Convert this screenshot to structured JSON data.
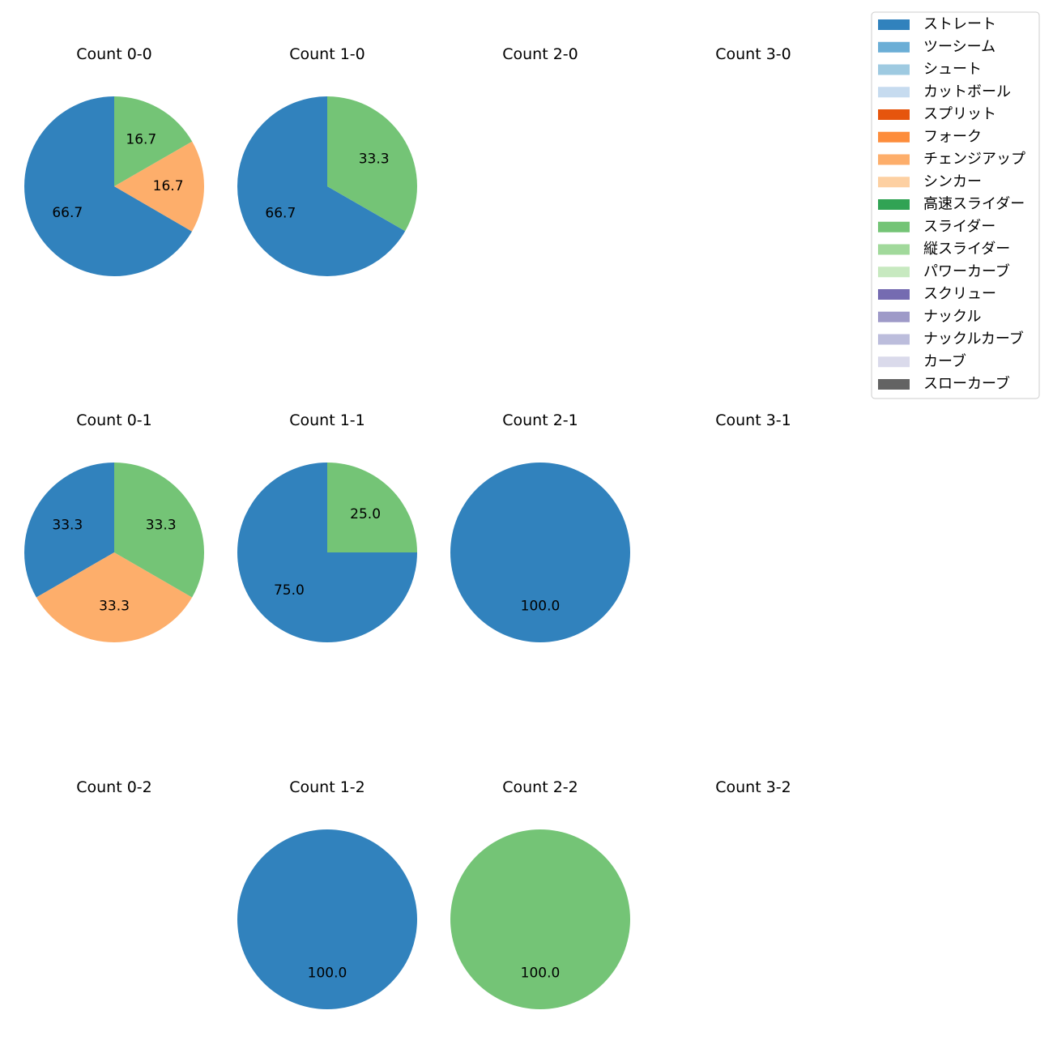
{
  "chart_data": {
    "type": "pie",
    "legend": {
      "placement": "top-right",
      "entries": [
        {
          "name": "ストレート",
          "color": "#3182bd"
        },
        {
          "name": "ツーシーム",
          "color": "#6baed6"
        },
        {
          "name": "シュート",
          "color": "#9ecae1"
        },
        {
          "name": "カットボール",
          "color": "#c6dbef"
        },
        {
          "name": "スプリット",
          "color": "#e6550d"
        },
        {
          "name": "フォーク",
          "color": "#fd8d3c"
        },
        {
          "name": "チェンジアップ",
          "color": "#fdae6b"
        },
        {
          "name": "シンカー",
          "color": "#fdd0a2"
        },
        {
          "name": "高速スライダー",
          "color": "#31a354"
        },
        {
          "name": "スライダー",
          "color": "#74c476"
        },
        {
          "name": "縦スライダー",
          "color": "#a1d99b"
        },
        {
          "name": "パワーカーブ",
          "color": "#c7e9c0"
        },
        {
          "name": "スクリュー",
          "color": "#756bb1"
        },
        {
          "name": "ナックル",
          "color": "#9e9ac8"
        },
        {
          "name": "ナックルカーブ",
          "color": "#bcbddc"
        },
        {
          "name": "カーブ",
          "color": "#dadaeb"
        },
        {
          "name": "スローカーブ",
          "color": "#636363"
        }
      ]
    },
    "panels": [
      {
        "title": "Count 0-0",
        "slices": [
          {
            "pitch": "ストレート",
            "value": 66.7,
            "label": "66.7"
          },
          {
            "pitch": "チェンジアップ",
            "value": 16.7,
            "label": "16.7"
          },
          {
            "pitch": "スライダー",
            "value": 16.7,
            "label": "16.7"
          }
        ]
      },
      {
        "title": "Count 1-0",
        "slices": [
          {
            "pitch": "ストレート",
            "value": 66.7,
            "label": "66.7"
          },
          {
            "pitch": "スライダー",
            "value": 33.3,
            "label": "33.3"
          }
        ]
      },
      {
        "title": "Count 2-0",
        "slices": []
      },
      {
        "title": "Count 3-0",
        "slices": []
      },
      {
        "title": "Count 0-1",
        "slices": [
          {
            "pitch": "ストレート",
            "value": 33.3,
            "label": "33.3"
          },
          {
            "pitch": "チェンジアップ",
            "value": 33.3,
            "label": "33.3"
          },
          {
            "pitch": "スライダー",
            "value": 33.3,
            "label": "33.3"
          }
        ]
      },
      {
        "title": "Count 1-1",
        "slices": [
          {
            "pitch": "ストレート",
            "value": 75.0,
            "label": "75.0"
          },
          {
            "pitch": "スライダー",
            "value": 25.0,
            "label": "25.0"
          }
        ]
      },
      {
        "title": "Count 2-1",
        "slices": [
          {
            "pitch": "ストレート",
            "value": 100.0,
            "label": "100.0"
          }
        ]
      },
      {
        "title": "Count 3-1",
        "slices": []
      },
      {
        "title": "Count 0-2",
        "slices": []
      },
      {
        "title": "Count 1-2",
        "slices": [
          {
            "pitch": "ストレート",
            "value": 100.0,
            "label": "100.0"
          }
        ]
      },
      {
        "title": "Count 2-2",
        "slices": [
          {
            "pitch": "スライダー",
            "value": 100.0,
            "label": "100.0"
          }
        ]
      },
      {
        "title": "Count 3-2",
        "slices": []
      }
    ]
  }
}
